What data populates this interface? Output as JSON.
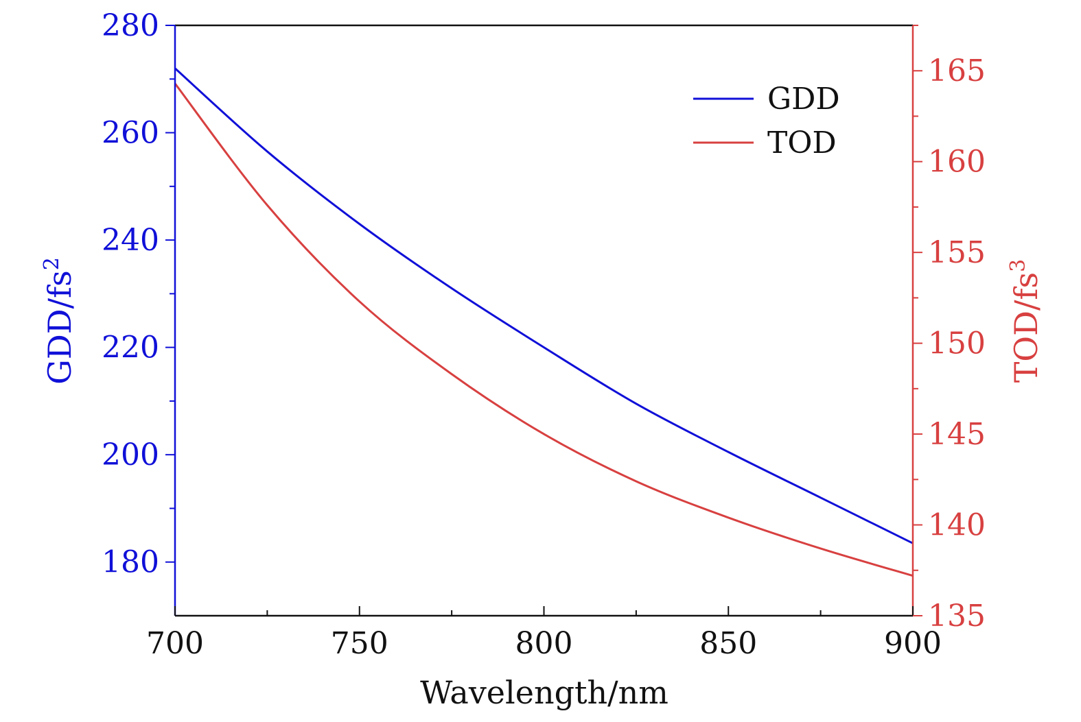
{
  "chart_data": {
    "type": "line",
    "xlabel": "Wavelength/nm",
    "ylabel_left": "GDD/fs",
    "ylabel_left_sup": "2",
    "ylabel_right": "TOD/fs",
    "ylabel_right_sup": "3",
    "xlim": [
      700,
      900
    ],
    "ylim_left": [
      170,
      280
    ],
    "ylim_right": [
      135,
      167.5
    ],
    "x_ticks": [
      700,
      750,
      800,
      850,
      900
    ],
    "y_left_ticks": [
      180,
      200,
      220,
      240,
      260,
      280
    ],
    "y_right_ticks": [
      135,
      140,
      145,
      150,
      155,
      160,
      165
    ],
    "grid": false,
    "legend_position": "top-right",
    "colors": {
      "gdd": "#1010d8",
      "tod": "#d84040",
      "axis_bottom": "#111111"
    },
    "x": [
      700,
      725,
      750,
      775,
      800,
      825,
      850,
      875,
      900
    ],
    "series": [
      {
        "name": "GDD",
        "axis": "left",
        "values": [
          272,
          256.5,
          243,
          231,
          220,
          209.5,
          200.5,
          192,
          183.5
        ]
      },
      {
        "name": "TOD",
        "axis": "right",
        "values": [
          164.3,
          157.6,
          152.3,
          148.3,
          145.0,
          142.4,
          140.4,
          138.7,
          137.2
        ]
      }
    ]
  }
}
